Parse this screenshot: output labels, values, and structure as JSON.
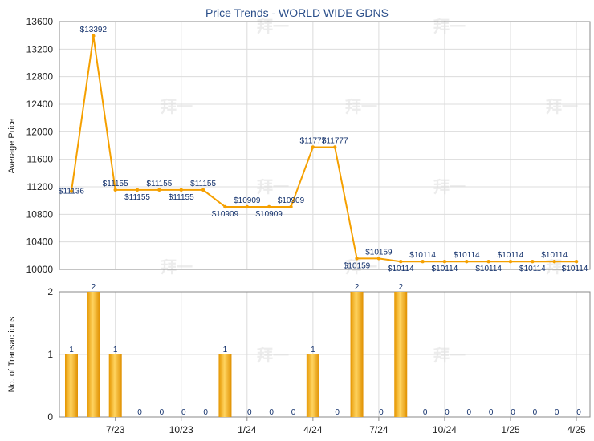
{
  "chart_data": [
    {
      "type": "line",
      "title": "Price Trends - WORLD WIDE GDNS",
      "ylabel": "Average Price",
      "ylim": [
        10000,
        13600
      ],
      "yticks": [
        10000,
        10400,
        10800,
        11200,
        11600,
        12000,
        12400,
        12800,
        13200,
        13600
      ],
      "grid": true,
      "line_color": "#f5a000",
      "series": [
        {
          "values": [
            11136,
            13392,
            11155,
            11155,
            11155,
            11155,
            11155,
            10909,
            10909,
            10909,
            10909,
            11777,
            11777,
            10159,
            10159,
            10114,
            10114,
            10114,
            10114,
            10114,
            10114,
            10114,
            10114,
            10114
          ],
          "labels": [
            "$11136",
            "$13392",
            "$11155",
            "$11155",
            "$11155",
            "$11155",
            "$11155",
            "$10909",
            "$10909",
            "$10909",
            "$10909",
            "$11777",
            "$11777",
            "$10159",
            "$10159",
            "$10114",
            "$10114",
            "$10114",
            "$10114",
            "$10114",
            "$10114",
            "$10114",
            "$10114",
            "$10114"
          ]
        }
      ]
    },
    {
      "type": "bar",
      "ylabel": "No. of Transactions",
      "ylim": [
        0,
        2
      ],
      "yticks": [
        0,
        1,
        2
      ],
      "grid": true,
      "bar_color": "#f5a800",
      "values": [
        1,
        2,
        1,
        0,
        0,
        0,
        0,
        1,
        0,
        0,
        0,
        1,
        0,
        2,
        0,
        2,
        0,
        0,
        0,
        0,
        0,
        0,
        0,
        0
      ],
      "x_tick_labels": [
        "7/23",
        "10/23",
        "1/24",
        "4/24",
        "7/24",
        "10/24",
        "1/25",
        "4/25"
      ]
    }
  ],
  "watermark": "拜一"
}
